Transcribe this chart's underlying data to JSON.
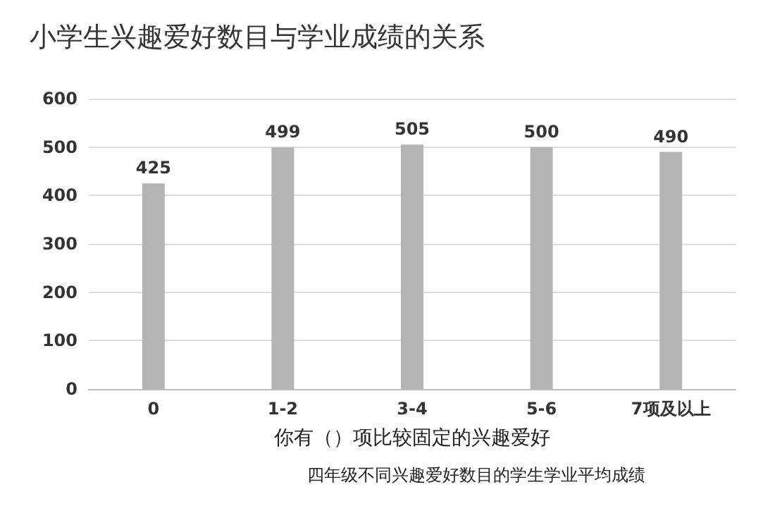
{
  "chart_data": {
    "type": "bar",
    "title": "小学生兴趣爱好数目与学业成绩的关系",
    "xlabel": "你有（）项比较固定的兴趣爱好",
    "annotations": [
      "四年级不同兴趣爱好数目的学生学业平均成绩"
    ],
    "categories": [
      "0",
      "1-2",
      "3-4",
      "5-6",
      "7项及以上"
    ],
    "values": [
      425,
      499,
      505,
      500,
      490
    ],
    "color": "#b4b4b4",
    "ylim": [
      0,
      600
    ],
    "yticks": [
      0,
      100,
      200,
      300,
      400,
      500,
      600
    ],
    "grid": "y",
    "data_labels": true
  }
}
